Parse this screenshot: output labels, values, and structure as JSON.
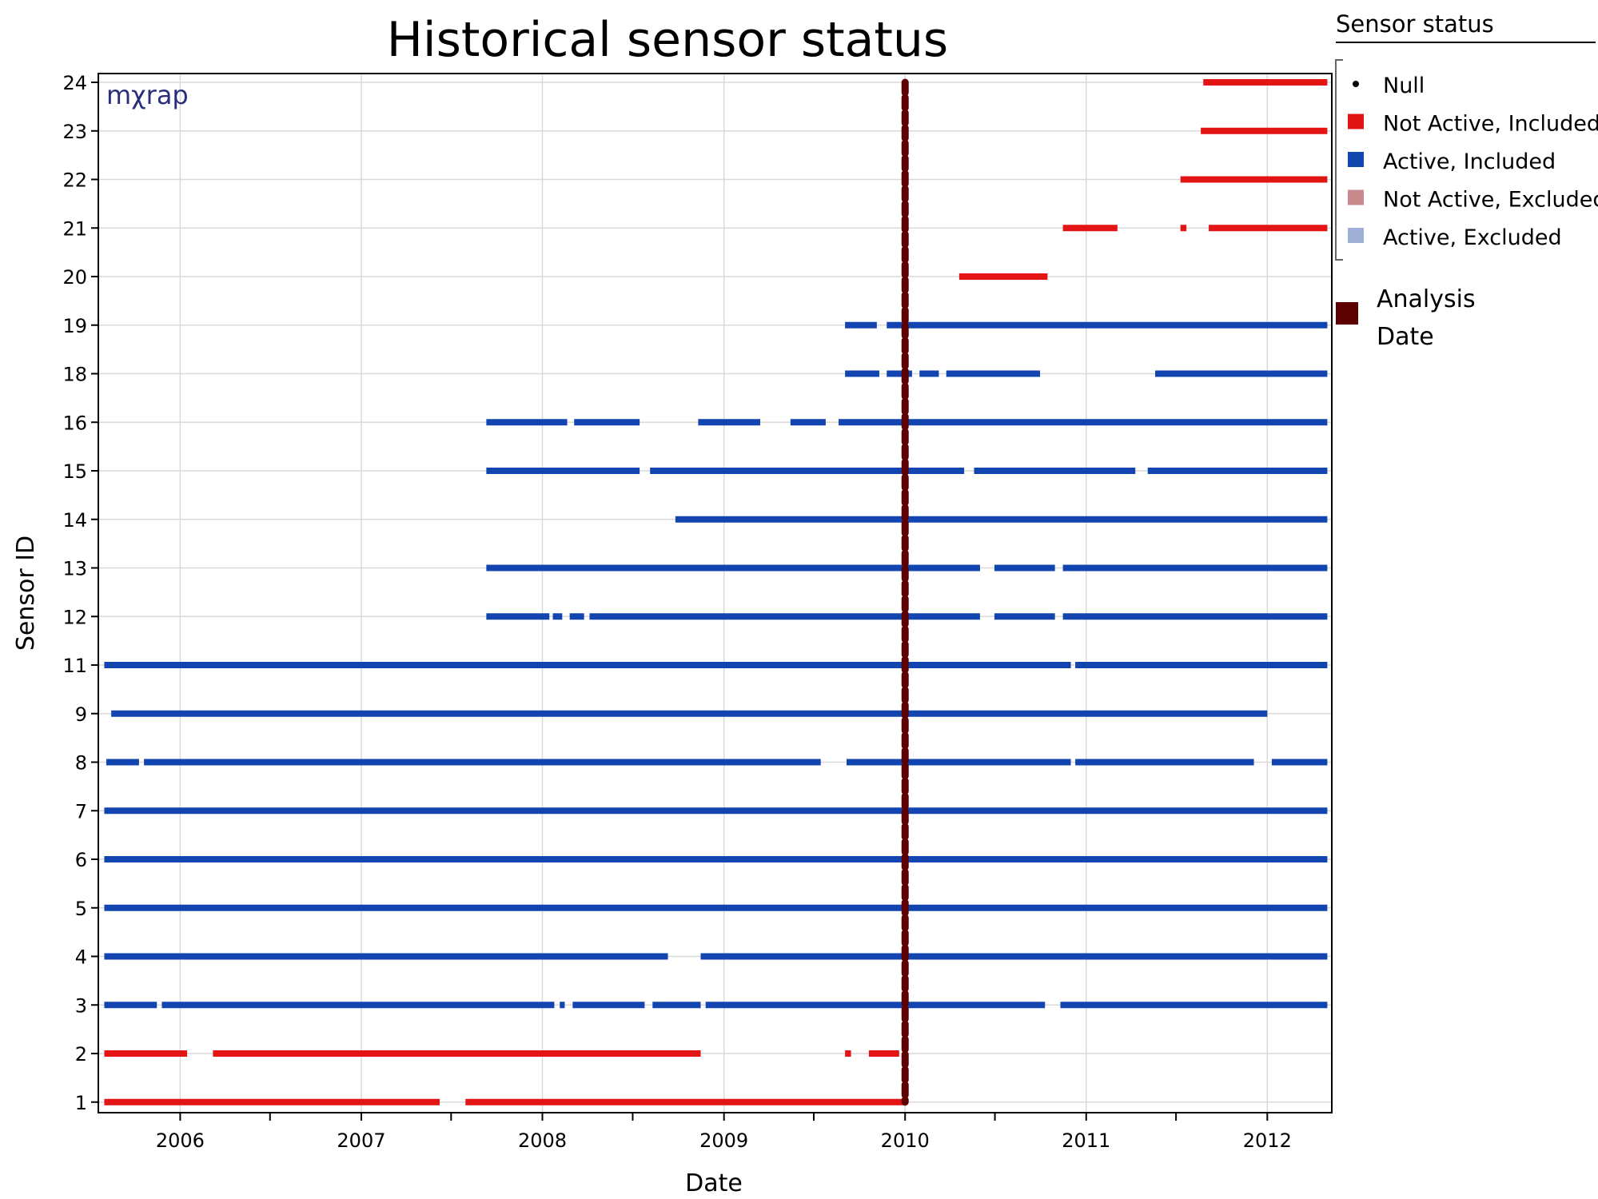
{
  "chart_data": {
    "type": "timeline",
    "title": "Historical sensor status",
    "xlabel": "Date",
    "ylabel": "Sensor ID",
    "xlim": [
      "2005-07-20",
      "2012-05-10"
    ],
    "x_ticks": [
      "2006",
      "2007",
      "2008",
      "2009",
      "2010",
      "2011",
      "2012"
    ],
    "y_categories": [
      "1",
      "2",
      "3",
      "4",
      "5",
      "6",
      "7",
      "8",
      "9",
      "11",
      "12",
      "13",
      "14",
      "15",
      "16",
      "18",
      "19",
      "20",
      "21",
      "22",
      "23",
      "24"
    ],
    "grid": true,
    "legend": {
      "title": "Sensor status",
      "placement": "right",
      "entries": [
        {
          "label": "Null",
          "status": "null",
          "color": "#000000"
        },
        {
          "label": "Not Active, Included",
          "status": "not_active_included",
          "color": "#e31414"
        },
        {
          "label": "Active, Included",
          "status": "active_included",
          "color": "#1245b0"
        },
        {
          "label": "Not Active, Excluded",
          "status": "not_active_excluded",
          "color": "#c98a8f"
        },
        {
          "label": "Active, Excluded",
          "status": "active_excluded",
          "color": "#9fb0d6"
        }
      ],
      "analysis_label": "Analysis Date",
      "analysis_color": "#5c0000"
    },
    "analysis_date": "2010-01-01",
    "watermark": "mχrap",
    "series": [
      {
        "sensor": "1",
        "status": "not_active_included",
        "segments": [
          [
            "2005-08-01",
            "2007-06-08"
          ],
          [
            "2007-07-30",
            "2009-12-30"
          ]
        ]
      },
      {
        "sensor": "2",
        "status": "not_active_included",
        "segments": [
          [
            "2005-08-01",
            "2006-01-15"
          ],
          [
            "2006-03-08",
            "2008-11-15"
          ],
          [
            "2009-09-02",
            "2009-09-14"
          ],
          [
            "2009-10-20",
            "2009-12-20"
          ]
        ]
      },
      {
        "sensor": "3",
        "status": "active_included",
        "segments": [
          [
            "2005-08-01",
            "2005-11-15"
          ],
          [
            "2005-11-25",
            "2008-01-25"
          ],
          [
            "2008-02-05",
            "2008-02-15"
          ],
          [
            "2008-03-02",
            "2008-07-25"
          ],
          [
            "2008-08-10",
            "2008-11-15"
          ],
          [
            "2008-11-25",
            "2010-10-10"
          ],
          [
            "2010-11-10",
            "2012-05-01"
          ]
        ]
      },
      {
        "sensor": "4",
        "status": "active_included",
        "segments": [
          [
            "2005-08-01",
            "2008-09-10"
          ],
          [
            "2008-11-15",
            "2012-05-01"
          ]
        ]
      },
      {
        "sensor": "5",
        "status": "active_included",
        "segments": [
          [
            "2005-08-01",
            "2012-05-01"
          ]
        ]
      },
      {
        "sensor": "6",
        "status": "active_included",
        "segments": [
          [
            "2005-08-01",
            "2012-05-01"
          ]
        ]
      },
      {
        "sensor": "7",
        "status": "active_included",
        "segments": [
          [
            "2005-08-01",
            "2012-05-01"
          ]
        ]
      },
      {
        "sensor": "8",
        "status": "active_included",
        "segments": [
          [
            "2005-08-05",
            "2005-10-10"
          ],
          [
            "2005-10-20",
            "2009-07-15"
          ],
          [
            "2009-09-05",
            "2010-12-01"
          ],
          [
            "2010-12-10",
            "2011-12-05"
          ],
          [
            "2012-01-10",
            "2012-05-01"
          ]
        ]
      },
      {
        "sensor": "9",
        "status": "active_included",
        "segments": [
          [
            "2005-08-15",
            "2012-01-01"
          ]
        ]
      },
      {
        "sensor": "11",
        "status": "active_included",
        "segments": [
          [
            "2005-08-01",
            "2010-12-01"
          ],
          [
            "2010-12-10",
            "2012-05-01"
          ]
        ]
      },
      {
        "sensor": "12",
        "status": "active_included",
        "segments": [
          [
            "2007-09-10",
            "2008-01-15"
          ],
          [
            "2008-01-22",
            "2008-02-10"
          ],
          [
            "2008-02-25",
            "2008-03-25"
          ],
          [
            "2008-04-05",
            "2010-06-01"
          ],
          [
            "2010-06-30",
            "2010-10-30"
          ],
          [
            "2010-11-15",
            "2012-05-01"
          ]
        ]
      },
      {
        "sensor": "13",
        "status": "active_included",
        "segments": [
          [
            "2007-09-10",
            "2010-06-01"
          ],
          [
            "2010-06-30",
            "2010-10-30"
          ],
          [
            "2010-11-15",
            "2012-05-01"
          ]
        ]
      },
      {
        "sensor": "14",
        "status": "active_included",
        "segments": [
          [
            "2008-09-25",
            "2012-05-01"
          ]
        ]
      },
      {
        "sensor": "15",
        "status": "active_included",
        "segments": [
          [
            "2007-09-10",
            "2008-07-15"
          ],
          [
            "2008-08-05",
            "2010-04-30"
          ],
          [
            "2010-05-20",
            "2011-04-10"
          ],
          [
            "2011-05-05",
            "2012-05-01"
          ]
        ]
      },
      {
        "sensor": "16",
        "status": "active_included",
        "segments": [
          [
            "2007-09-10",
            "2008-02-20"
          ],
          [
            "2008-03-05",
            "2008-07-15"
          ],
          [
            "2008-11-10",
            "2009-03-15"
          ],
          [
            "2009-05-15",
            "2009-07-25"
          ],
          [
            "2009-08-20",
            "2012-05-01"
          ]
        ]
      },
      {
        "sensor": "18",
        "status": "active_included",
        "segments": [
          [
            "2009-09-02",
            "2009-11-10"
          ],
          [
            "2009-11-25",
            "2010-01-15"
          ],
          [
            "2010-01-30",
            "2010-03-10"
          ],
          [
            "2010-03-25",
            "2010-09-30"
          ],
          [
            "2011-05-20",
            "2012-05-01"
          ]
        ]
      },
      {
        "sensor": "19",
        "status": "active_included",
        "segments": [
          [
            "2009-09-02",
            "2009-11-05"
          ],
          [
            "2009-11-25",
            "2012-05-01"
          ]
        ]
      },
      {
        "sensor": "20",
        "status": "not_active_included",
        "segments": [
          [
            "2010-04-20",
            "2010-10-15"
          ]
        ]
      },
      {
        "sensor": "21",
        "status": "not_active_included",
        "segments": [
          [
            "2010-11-15",
            "2011-03-05"
          ],
          [
            "2011-07-10",
            "2011-07-22"
          ],
          [
            "2011-09-05",
            "2012-05-01"
          ]
        ]
      },
      {
        "sensor": "22",
        "status": "not_active_included",
        "segments": [
          [
            "2011-07-10",
            "2012-05-01"
          ]
        ]
      },
      {
        "sensor": "23",
        "status": "not_active_included",
        "segments": [
          [
            "2011-08-20",
            "2012-05-01"
          ]
        ]
      },
      {
        "sensor": "24",
        "status": "not_active_included",
        "segments": [
          [
            "2011-08-25",
            "2012-05-01"
          ]
        ]
      }
    ]
  }
}
